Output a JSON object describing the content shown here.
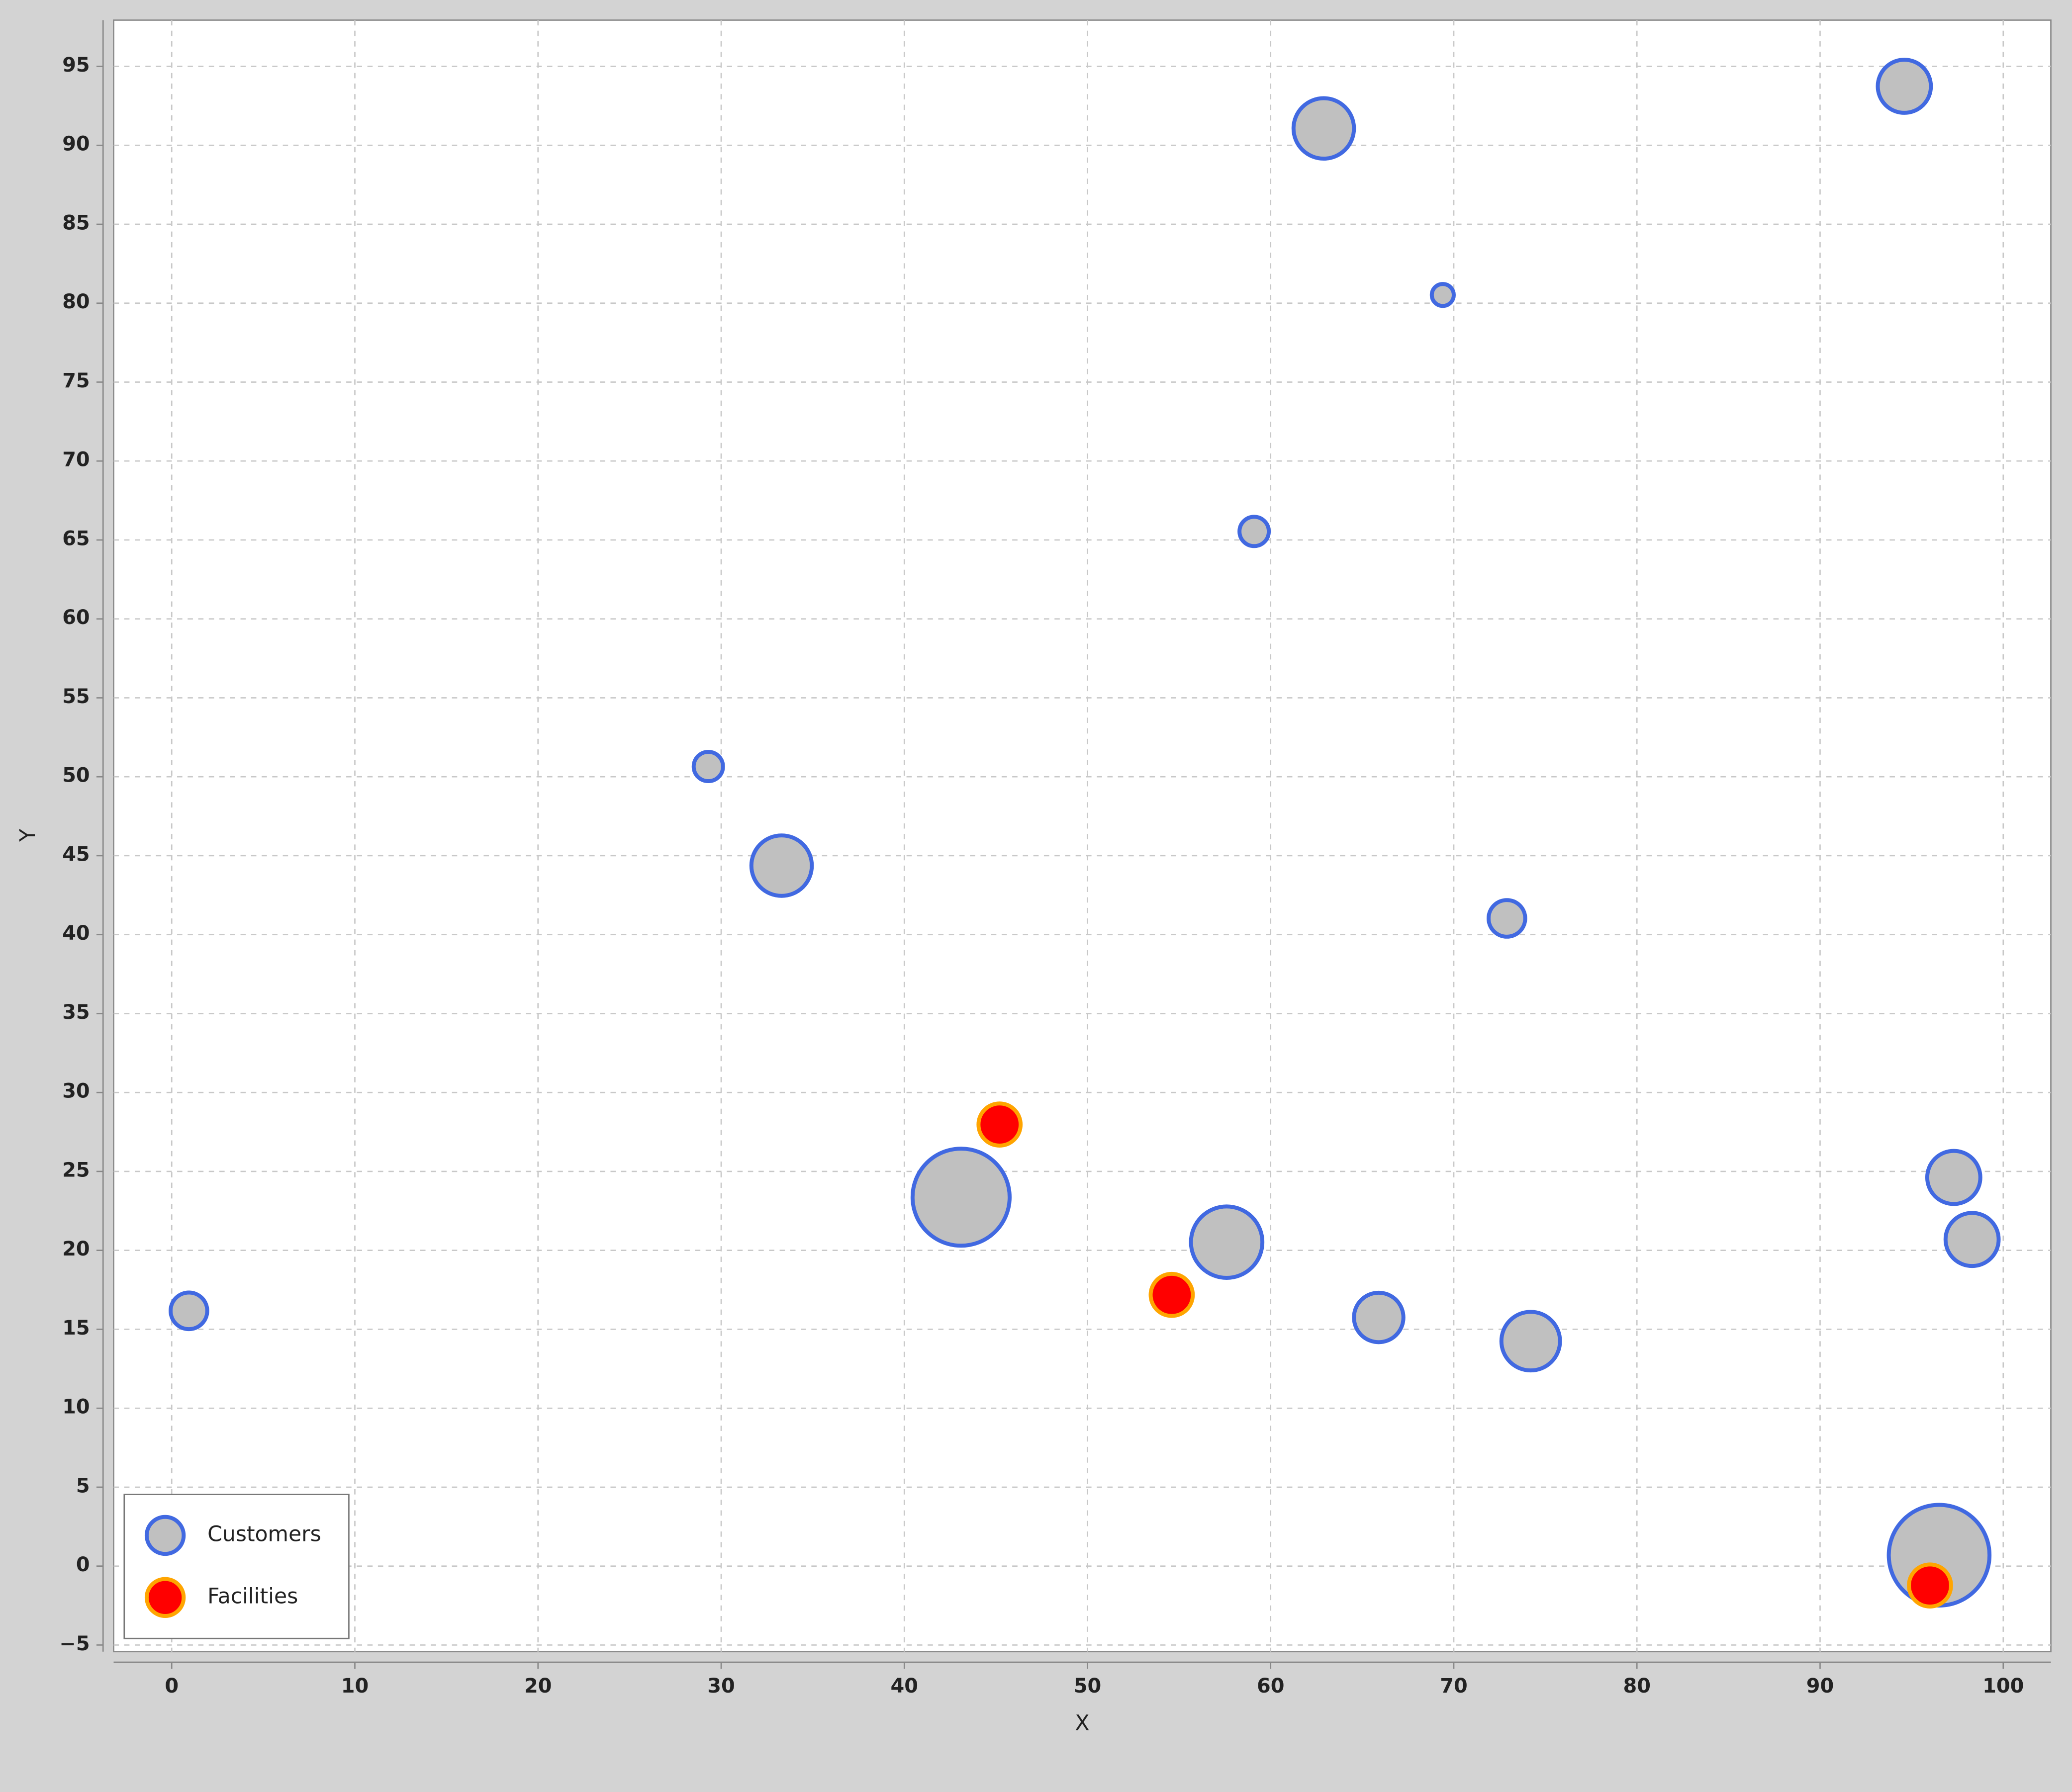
{
  "chart_data": {
    "type": "bubble",
    "xlabel": "X",
    "ylabel": "Y",
    "xlim": [
      -3.17,
      102.6
    ],
    "ylim": [
      -5.42,
      97.93
    ],
    "xticks": [
      0,
      10,
      20,
      30,
      40,
      50,
      60,
      70,
      80,
      90,
      100
    ],
    "yticks": [
      {
        "value": -5,
        "label": "−5"
      },
      0,
      5,
      10,
      15,
      20,
      25,
      30,
      35,
      40,
      45,
      50,
      55,
      60,
      65,
      70,
      75,
      80,
      85,
      90,
      95
    ],
    "grid": true,
    "legend": "lower left",
    "series": [
      {
        "name": "Customers",
        "color": "#c0c0c0",
        "edgecolor": "#4169e1",
        "x": [
          0.94,
          29.3,
          33.3,
          43.1,
          57.6,
          65.9,
          74.2,
          59.1,
          62.9,
          69.4,
          72.9,
          94.6,
          97.3,
          98.3,
          96.5
        ],
        "values": [
          16.17,
          50.65,
          44.37,
          23.37,
          20.52,
          15.75,
          14.25,
          65.54,
          91.07,
          80.52,
          41.03,
          93.74,
          24.62,
          20.69,
          0.69
        ],
        "sizes": [
          2.0,
          1.6,
          3.3,
          5.3,
          3.9,
          2.7,
          3.2,
          1.6,
          3.3,
          1.2,
          2.0,
          2.9,
          2.9,
          2.9,
          5.5
        ]
      },
      {
        "name": "Facilities",
        "color": "#ff0000",
        "edgecolor": "#ffa500",
        "x": [
          45.2,
          54.6,
          96.0
        ],
        "values": [
          27.97,
          17.18,
          -1.23
        ],
        "sizes": [
          2.3,
          2.3,
          2.3
        ]
      }
    ]
  }
}
